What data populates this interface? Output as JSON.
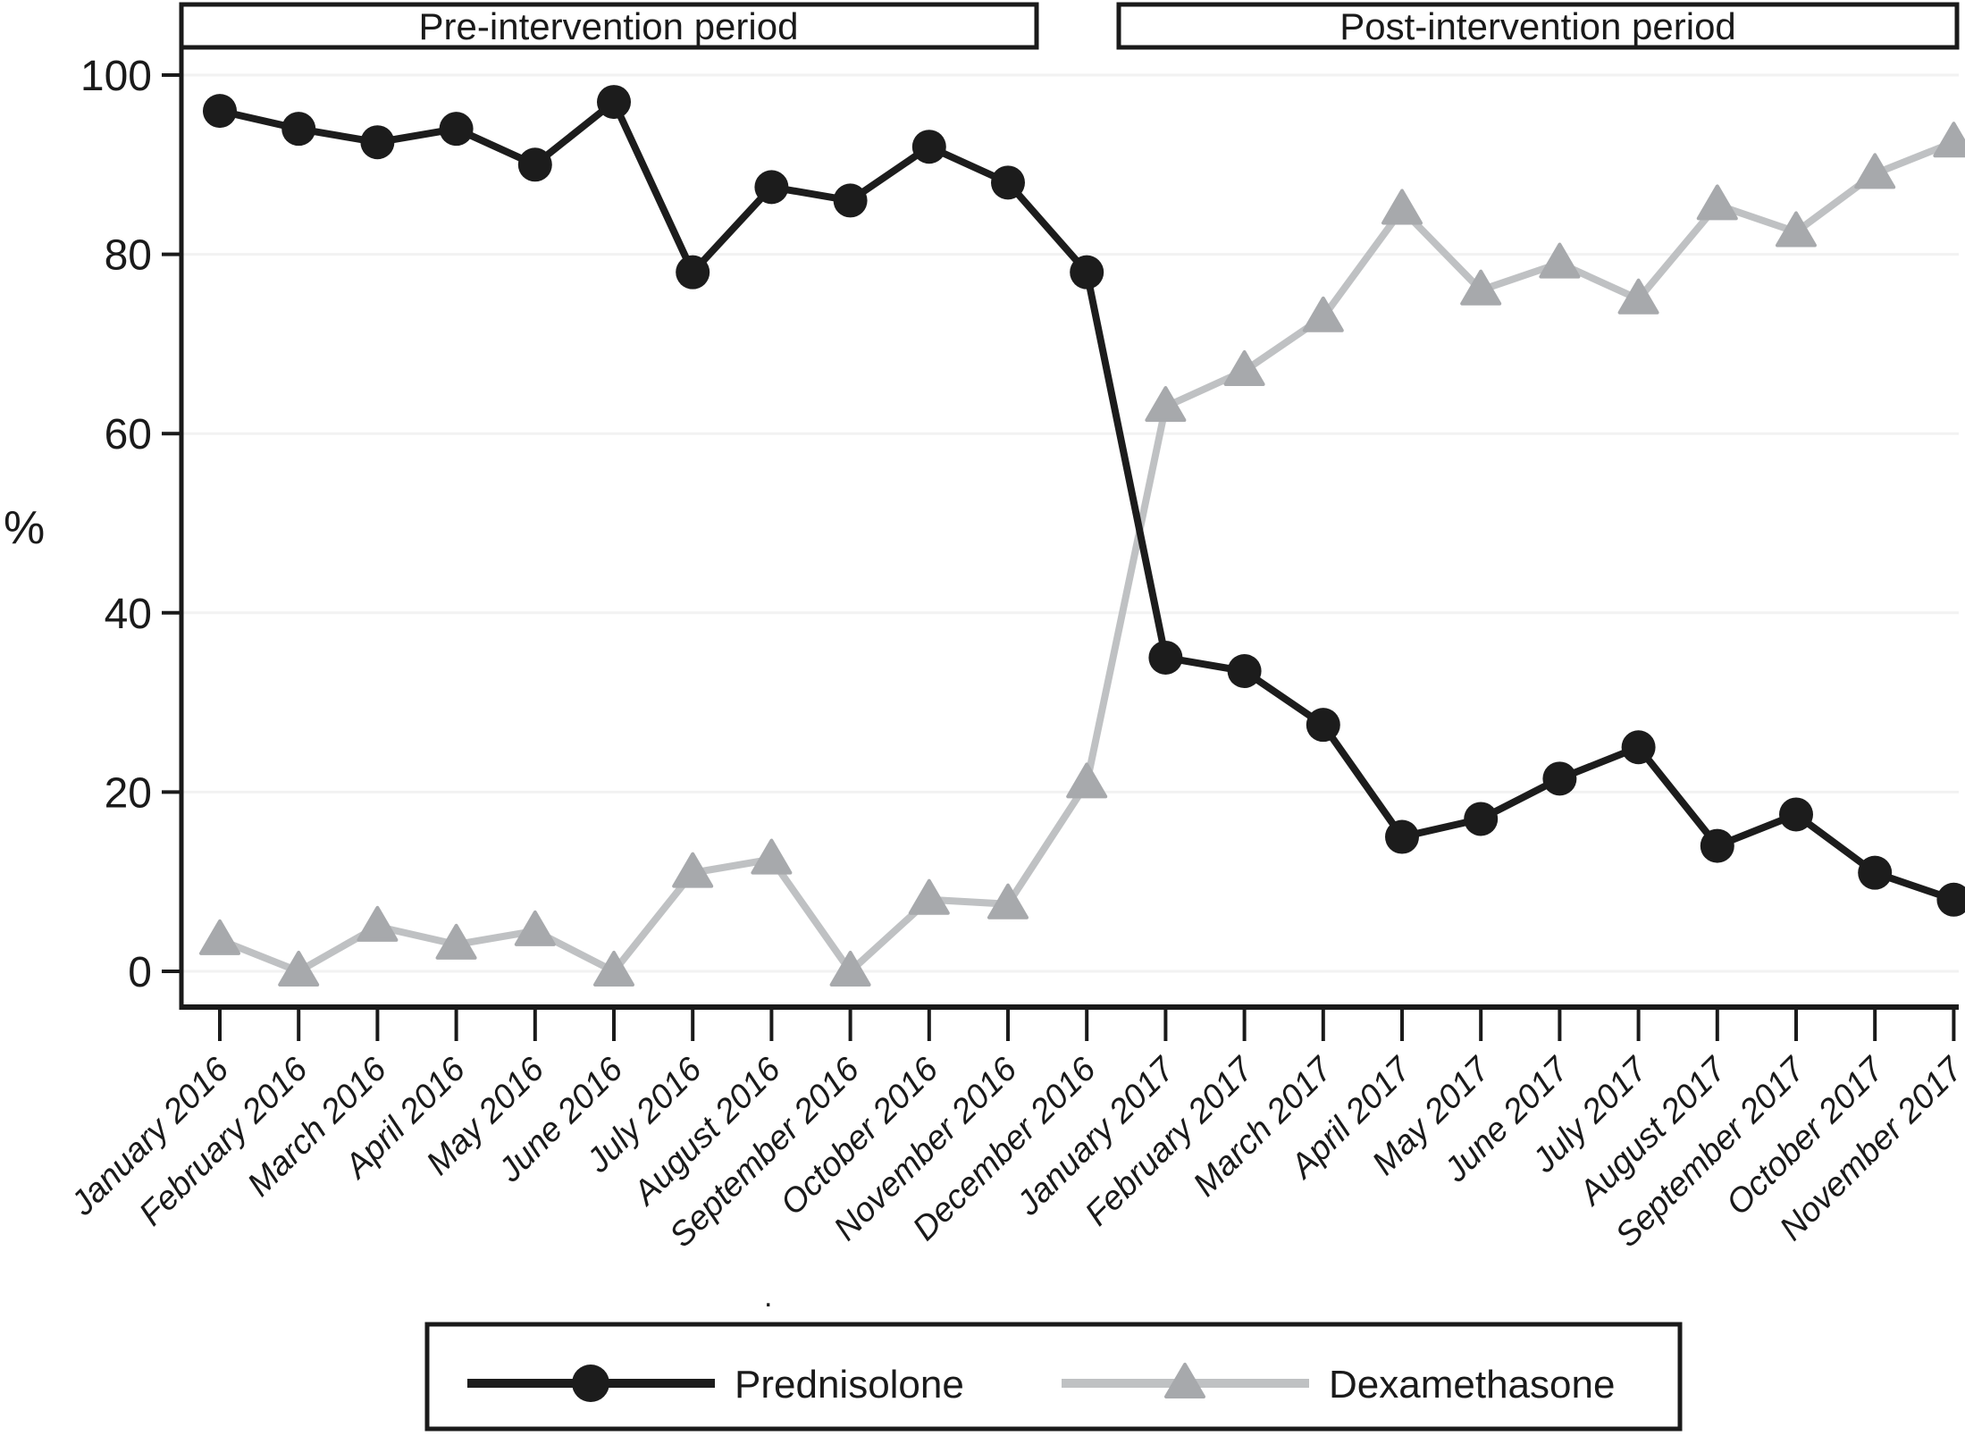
{
  "figure": {
    "background": "#ffffff",
    "period_labels": {
      "pre": "Pre-intervention period",
      "post": "Post-intervention period"
    },
    "stray_mark": "."
  },
  "chart_data": {
    "type": "line",
    "title": "",
    "xlabel": "",
    "ylabel": "%",
    "ylim": [
      0,
      100
    ],
    "yticks": [
      0,
      20,
      40,
      60,
      80,
      100
    ],
    "grid": "horizontal",
    "legend_position": "bottom",
    "categories": [
      "January 2016",
      "February 2016",
      "March 2016",
      "April 2016",
      "May 2016",
      "June 2016",
      "July 2016",
      "August 2016",
      "September 2016",
      "October 2016",
      "November 2016",
      "December 2016",
      "January 2017",
      "February 2017",
      "March 2017",
      "April 2017",
      "May 2017",
      "June 2017",
      "July 2017",
      "August 2017",
      "September 2017",
      "October 2017",
      "November 2017"
    ],
    "series": [
      {
        "name": "Prednisolone",
        "marker": "circle",
        "marker_color": "#1c1c1c",
        "line_color": "#1c1c1c",
        "values": [
          96,
          94,
          92.5,
          94,
          90,
          97,
          78,
          87.5,
          86,
          92,
          88,
          78,
          35,
          33.5,
          27.5,
          15,
          17,
          21.5,
          25,
          14,
          17.5,
          11,
          8
        ]
      },
      {
        "name": "Dexamethasone",
        "marker": "triangle",
        "marker_color": "#a7a9ac",
        "line_color": "#bfc1c3",
        "values": [
          3.5,
          0,
          5,
          3,
          4.5,
          0,
          11,
          12.5,
          0,
          8,
          7.5,
          21,
          63,
          67,
          73,
          85,
          76,
          79,
          75,
          85.5,
          82.5,
          89,
          92.5
        ]
      }
    ],
    "annotations": [
      {
        "label": "Pre-intervention period",
        "covers": "January 2016 - November 2016"
      },
      {
        "label": "Post-intervention period",
        "covers": "January 2017 - November 2017"
      }
    ],
    "colors": {
      "axis": "#1a1a1a",
      "gridline": "#f2f2f2",
      "box_border": "#1a1a1a",
      "text": "#1a1a1a"
    }
  },
  "legend": {
    "items": [
      {
        "label": "Prednisolone"
      },
      {
        "label": "Dexamethasone"
      }
    ]
  }
}
